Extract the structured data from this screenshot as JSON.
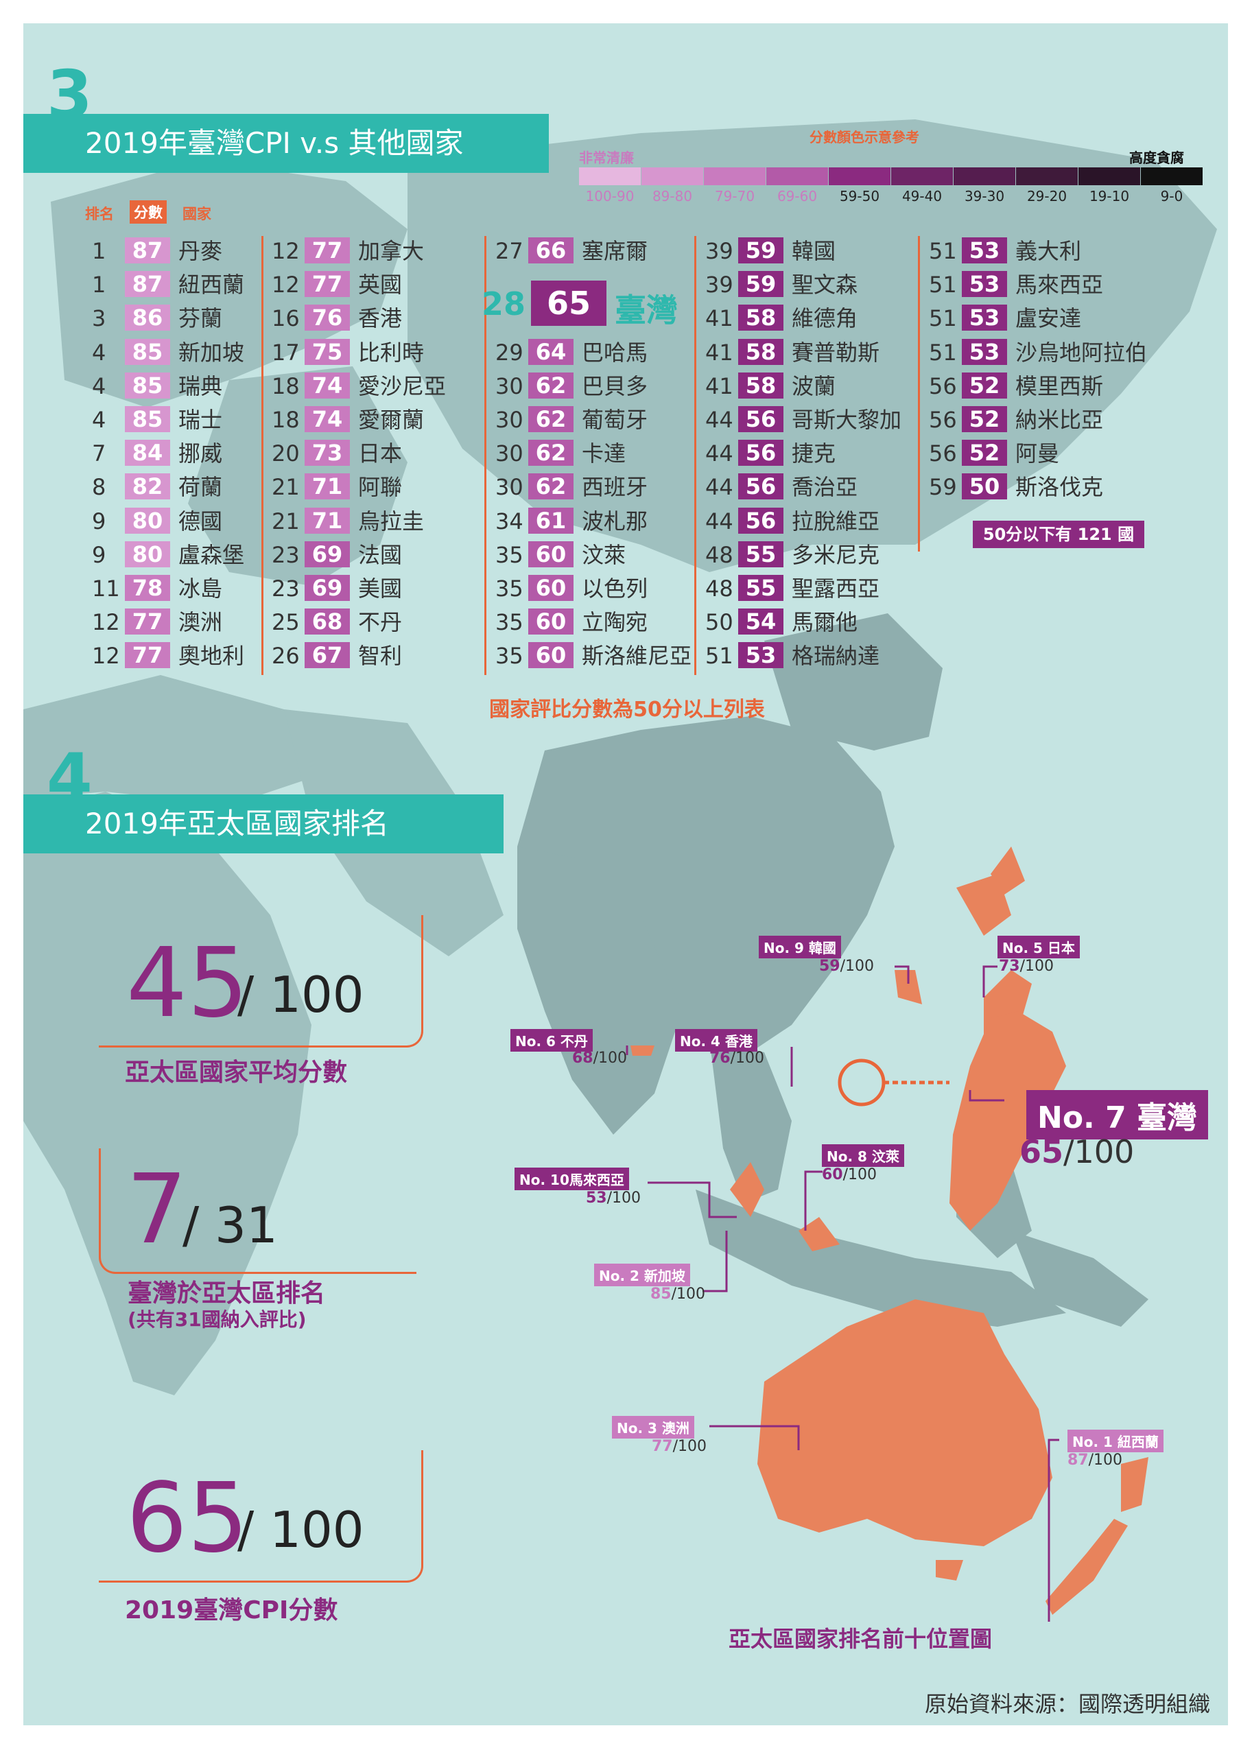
{
  "section3": {
    "number": "3",
    "title": "2019年臺灣CPI v.s 其他國家"
  },
  "legend": {
    "title": "分數顏色示意參考",
    "left_label": "非常清廉",
    "right_label": "高度貪腐",
    "ranges": [
      "100-90",
      "89-80",
      "79-70",
      "69-60",
      "59-50",
      "49-40",
      "39-30",
      "29-20",
      "19-10",
      "9-0"
    ],
    "colors": [
      "#e6b7df",
      "#d796cf",
      "#c97bbf",
      "#b35aa8",
      "#8b2a80",
      "#6e2466",
      "#551d4f",
      "#3f1a3a",
      "#2a1428",
      "#111111"
    ]
  },
  "table": {
    "header": {
      "rank": "排名",
      "score": "分數",
      "country": "國家"
    },
    "columns": [
      [
        {
          "rank": "1",
          "score": "87",
          "country": "丹麥"
        },
        {
          "rank": "1",
          "score": "87",
          "country": "紐西蘭"
        },
        {
          "rank": "3",
          "score": "86",
          "country": "芬蘭"
        },
        {
          "rank": "4",
          "score": "85",
          "country": "新加坡"
        },
        {
          "rank": "4",
          "score": "85",
          "country": "瑞典"
        },
        {
          "rank": "4",
          "score": "85",
          "country": "瑞士"
        },
        {
          "rank": "7",
          "score": "84",
          "country": "挪威"
        },
        {
          "rank": "8",
          "score": "82",
          "country": "荷蘭"
        },
        {
          "rank": "9",
          "score": "80",
          "country": "德國"
        },
        {
          "rank": "9",
          "score": "80",
          "country": "盧森堡"
        },
        {
          "rank": "11",
          "score": "78",
          "country": "冰島"
        },
        {
          "rank": "12",
          "score": "77",
          "country": "澳洲"
        },
        {
          "rank": "12",
          "score": "77",
          "country": "奧地利"
        }
      ],
      [
        {
          "rank": "12",
          "score": "77",
          "country": "加拿大"
        },
        {
          "rank": "12",
          "score": "77",
          "country": "英國"
        },
        {
          "rank": "16",
          "score": "76",
          "country": "香港"
        },
        {
          "rank": "17",
          "score": "75",
          "country": "比利時"
        },
        {
          "rank": "18",
          "score": "74",
          "country": "愛沙尼亞"
        },
        {
          "rank": "18",
          "score": "74",
          "country": "愛爾蘭"
        },
        {
          "rank": "20",
          "score": "73",
          "country": "日本"
        },
        {
          "rank": "21",
          "score": "71",
          "country": "阿聯"
        },
        {
          "rank": "21",
          "score": "71",
          "country": "烏拉圭"
        },
        {
          "rank": "23",
          "score": "69",
          "country": "法國"
        },
        {
          "rank": "23",
          "score": "69",
          "country": "美國"
        },
        {
          "rank": "25",
          "score": "68",
          "country": "不丹"
        },
        {
          "rank": "26",
          "score": "67",
          "country": "智利"
        }
      ],
      [
        {
          "rank": "27",
          "score": "66",
          "country": "塞席爾"
        },
        {
          "rank": "29",
          "score": "64",
          "country": "巴哈馬"
        },
        {
          "rank": "30",
          "score": "62",
          "country": "巴貝多"
        },
        {
          "rank": "30",
          "score": "62",
          "country": "葡萄牙"
        },
        {
          "rank": "30",
          "score": "62",
          "country": "卡達"
        },
        {
          "rank": "30",
          "score": "62",
          "country": "西班牙"
        },
        {
          "rank": "34",
          "score": "61",
          "country": "波札那"
        },
        {
          "rank": "35",
          "score": "60",
          "country": "汶萊"
        },
        {
          "rank": "35",
          "score": "60",
          "country": "以色列"
        },
        {
          "rank": "35",
          "score": "60",
          "country": "立陶宛"
        },
        {
          "rank": "35",
          "score": "60",
          "country": "斯洛維尼亞"
        }
      ],
      [
        {
          "rank": "39",
          "score": "59",
          "country": "韓國"
        },
        {
          "rank": "39",
          "score": "59",
          "country": "聖文森"
        },
        {
          "rank": "41",
          "score": "58",
          "country": "維德角"
        },
        {
          "rank": "41",
          "score": "58",
          "country": "賽普勒斯"
        },
        {
          "rank": "41",
          "score": "58",
          "country": "波蘭"
        },
        {
          "rank": "44",
          "score": "56",
          "country": "哥斯大黎加"
        },
        {
          "rank": "44",
          "score": "56",
          "country": "捷克"
        },
        {
          "rank": "44",
          "score": "56",
          "country": "喬治亞"
        },
        {
          "rank": "44",
          "score": "56",
          "country": "拉脫維亞"
        },
        {
          "rank": "48",
          "score": "55",
          "country": "多米尼克"
        },
        {
          "rank": "48",
          "score": "55",
          "country": "聖露西亞"
        },
        {
          "rank": "50",
          "score": "54",
          "country": "馬爾他"
        },
        {
          "rank": "51",
          "score": "53",
          "country": "格瑞納達"
        }
      ],
      [
        {
          "rank": "51",
          "score": "53",
          "country": "義大利"
        },
        {
          "rank": "51",
          "score": "53",
          "country": "馬來西亞"
        },
        {
          "rank": "51",
          "score": "53",
          "country": "盧安達"
        },
        {
          "rank": "51",
          "score": "53",
          "country": "沙烏地阿拉伯"
        },
        {
          "rank": "56",
          "score": "52",
          "country": "模里西斯"
        },
        {
          "rank": "56",
          "score": "52",
          "country": "納米比亞"
        },
        {
          "rank": "56",
          "score": "52",
          "country": "阿曼"
        },
        {
          "rank": "59",
          "score": "50",
          "country": "斯洛伐克"
        }
      ]
    ],
    "taiwan": {
      "rank": "28",
      "score": "65",
      "country": "臺灣"
    },
    "below50_note": "50分以下有 121 國",
    "footer_note": "國家評比分數為50分以上列表"
  },
  "section4": {
    "number": "4",
    "title": "2019年亞太區國家排名"
  },
  "stats": [
    {
      "big": "45",
      "small": "/ 100",
      "label": "亞太區國家平均分數",
      "sub": ""
    },
    {
      "big": "7",
      "small": "/ 31",
      "label": "臺灣於亞太區排名",
      "sub": "(共有31國納入評比)"
    },
    {
      "big": "65",
      "small": "/ 100",
      "label": "2019臺灣CPI分數",
      "sub": ""
    }
  ],
  "map_labels": {
    "korea": {
      "tag": "No. 9  韓國",
      "score": "59",
      "total": "/100"
    },
    "japan": {
      "tag": "No. 5  日本",
      "score": "73",
      "total": "/100"
    },
    "bhutan": {
      "tag": "No. 6  不丹",
      "score": "68",
      "total": "/100"
    },
    "hongkong": {
      "tag": "No. 4  香港",
      "score": "76",
      "total": "/100"
    },
    "malaysia": {
      "tag": "No. 10馬來西亞",
      "score": "53",
      "total": "/100"
    },
    "brunei": {
      "tag": "No. 8  汶萊",
      "score": "60",
      "total": "/100"
    },
    "singapore": {
      "tag": "No. 2  新加坡",
      "score": "85",
      "total": "/100"
    },
    "australia": {
      "tag": "No. 3  澳洲",
      "score": "77",
      "total": "/100"
    },
    "newzealand": {
      "tag": "No. 1  紐西蘭",
      "score": "87",
      "total": "/100"
    },
    "taiwan": {
      "tag": "No. 7  臺灣",
      "score": "65",
      "total": "/100"
    }
  },
  "map_caption": "亞太區國家排名前十位置圖",
  "source": "原始資料來源：國際透明組織"
}
